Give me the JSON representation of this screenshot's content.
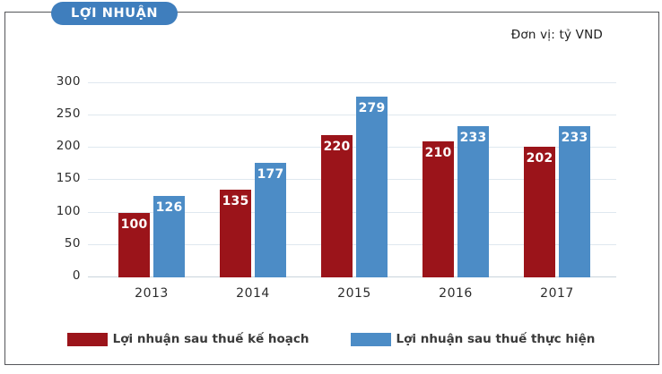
{
  "header": {
    "title_badge": "LỢI NHUẬN",
    "unit_label": "Đơn vị: tỷ VND"
  },
  "colors": {
    "badge_blue": "#3F7EBD",
    "planned_red": "#9B141A",
    "actual_blue": "#4C8CC6",
    "gridline": "#dfe8ef",
    "frame_border": "#55565a"
  },
  "chart_data": {
    "type": "bar",
    "title": "LỢI NHUẬN",
    "unit": "tỷ VND",
    "categories": [
      "2013",
      "2014",
      "2015",
      "2016",
      "2017"
    ],
    "series": [
      {
        "name": "Lợi nhuận sau thuế kế hoạch",
        "color": "#9B141A",
        "values": [
          100,
          135,
          220,
          210,
          202
        ]
      },
      {
        "name": "Lợi nhuận sau thuế thực hiện",
        "color": "#4C8CC6",
        "values": [
          126,
          177,
          279,
          233,
          233
        ]
      }
    ],
    "xlabel": "",
    "ylabel": "",
    "ylim": [
      0,
      300
    ],
    "ytick_step": 50,
    "grid": "horizontal",
    "legend_position": "bottom",
    "value_labels": "inside-top"
  }
}
